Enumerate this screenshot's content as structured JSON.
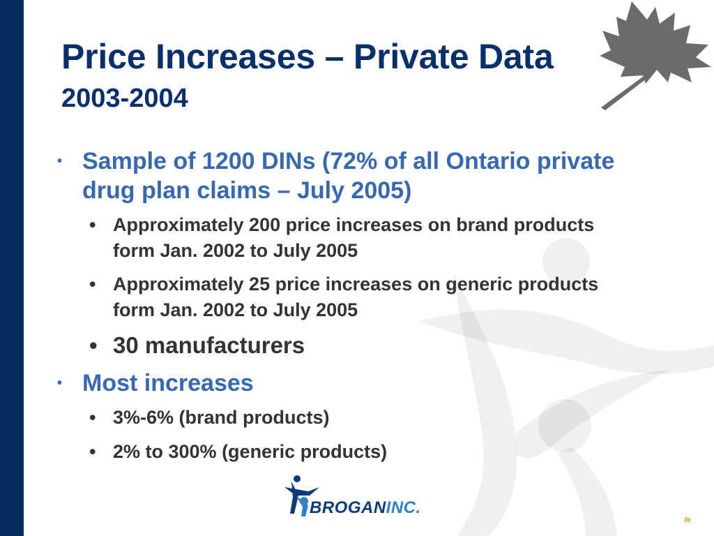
{
  "slide": {
    "title_line1": "Price Increases – Private Data",
    "title_line2": "2003-2004",
    "colors": {
      "bar": "#062a5e",
      "title": "#0a2f6b",
      "level1_text": "#3868b0",
      "level2_text": "#333333",
      "leaf": "#6b6b6b",
      "nav_arrow": "#e09a1a"
    }
  },
  "bullets": [
    {
      "text": "Sample of 1200 DINs (72% of all Ontario private drug plan claims – July 2005)",
      "sub": [
        "Approximately 200 price increases on brand products form Jan. 2002 to July 2005",
        "Approximately 25 price increases on generic products form Jan. 2002 to July 2005",
        "30 manufacturers"
      ]
    },
    {
      "text": "Most increases",
      "sub": [
        "3%-6% (brand products)",
        "2% to 300% (generic products)"
      ]
    }
  ],
  "bullet_glyph": "•",
  "logo": {
    "brand": "BROGAN",
    "suffix": "INC."
  },
  "nav": {
    "next_glyph": "»"
  },
  "icons": {
    "leaf": "maple-leaf-icon",
    "watermark": "star-figure-watermark-icon",
    "logo_mark": "brogan-figure-icon"
  }
}
